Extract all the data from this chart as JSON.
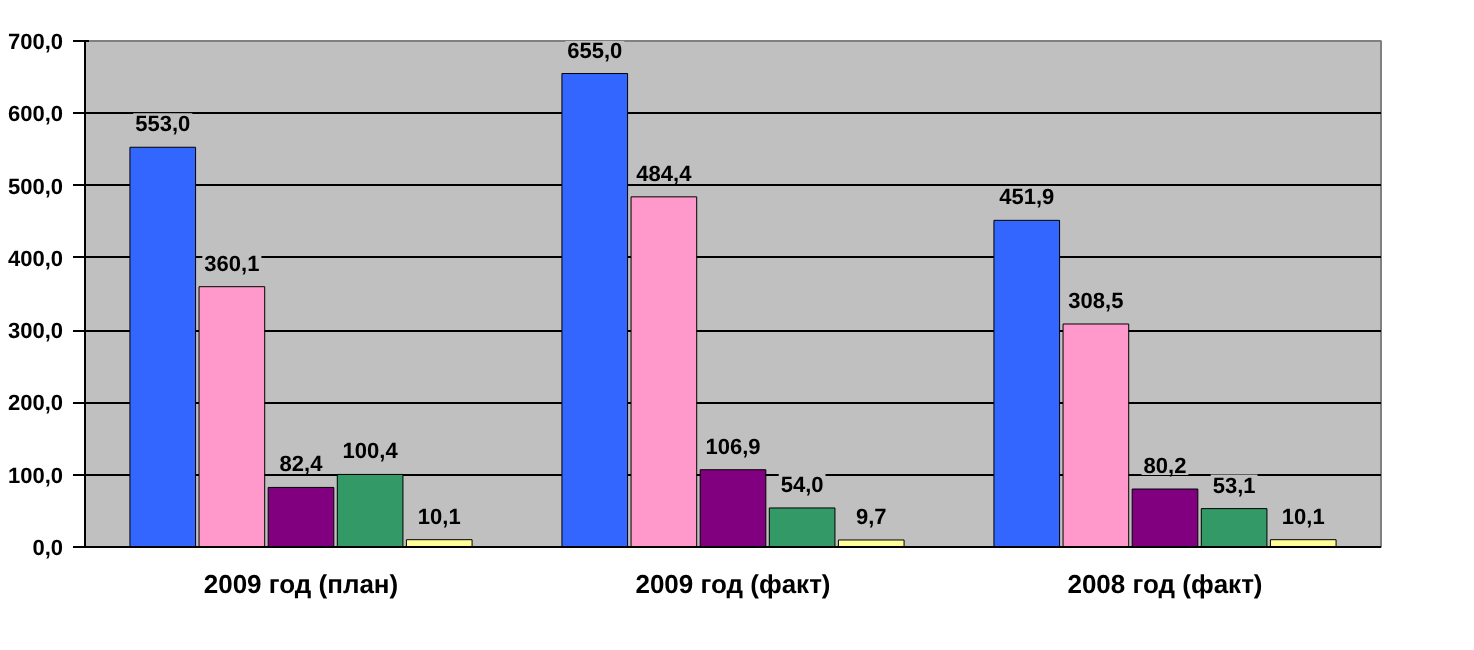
{
  "chart_data": {
    "type": "bar",
    "categories": [
      "2009 год (план)",
      "2009 год (факт)",
      "2008 год (факт)"
    ],
    "series": [
      {
        "color": "#3366ff",
        "values": [
          553.0,
          655.0,
          451.9
        ],
        "value_labels": [
          "553,0",
          "655,0",
          "451,9"
        ]
      },
      {
        "color": "#ff99cc",
        "values": [
          360.1,
          484.4,
          308.5
        ],
        "value_labels": [
          "360,1",
          "484,4",
          "308,5"
        ]
      },
      {
        "color": "#800080",
        "values": [
          82.4,
          106.9,
          80.2
        ],
        "value_labels": [
          "82,4",
          "106,9",
          "80,2"
        ]
      },
      {
        "color": "#339966",
        "values": [
          100.4,
          54.0,
          53.1
        ],
        "value_labels": [
          "100,4",
          "54,0",
          "53,1"
        ]
      },
      {
        "color": "#ffff99",
        "values": [
          10.1,
          9.7,
          10.1
        ],
        "value_labels": [
          "10,1",
          "9,7",
          "10,1"
        ]
      }
    ],
    "ylim": [
      0,
      700
    ],
    "yticks": [
      {
        "value": 0,
        "label": "0,0"
      },
      {
        "value": 100,
        "label": "100,0"
      },
      {
        "value": 200,
        "label": "200,0"
      },
      {
        "value": 300,
        "label": "300,0"
      },
      {
        "value": 400,
        "label": "400,0"
      },
      {
        "value": 500,
        "label": "500,0"
      },
      {
        "value": 600,
        "label": "600,0"
      },
      {
        "value": 700,
        "label": "700,0"
      }
    ],
    "grid": "y"
  }
}
